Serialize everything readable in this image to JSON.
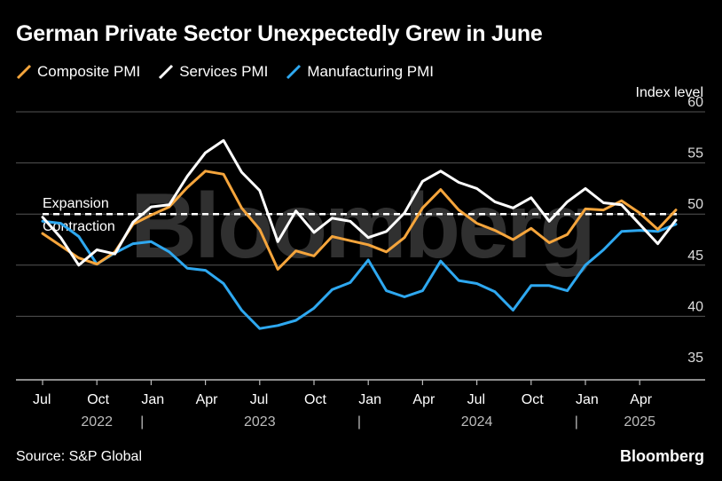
{
  "title": "German Private Sector Unexpectedly Grew in June",
  "source": "Source: S&P Global",
  "brand": "Bloomberg",
  "watermark": "Bloomberg",
  "chart_data": {
    "type": "line",
    "title": "German Private Sector Unexpectedly Grew in June",
    "ylabel": "Index level",
    "ylim": [
      35,
      60
    ],
    "yticks": [
      35,
      40,
      45,
      50,
      55,
      60
    ],
    "reference_line": {
      "value": 50,
      "above_label": "Expansion",
      "below_label": "Contraction"
    },
    "x": [
      "2022-07",
      "2022-08",
      "2022-09",
      "2022-10",
      "2022-11",
      "2022-12",
      "2023-01",
      "2023-02",
      "2023-03",
      "2023-04",
      "2023-05",
      "2023-06",
      "2023-07",
      "2023-08",
      "2023-09",
      "2023-10",
      "2023-11",
      "2023-12",
      "2024-01",
      "2024-02",
      "2024-03",
      "2024-04",
      "2024-05",
      "2024-06",
      "2024-07",
      "2024-08",
      "2024-09",
      "2024-10",
      "2024-11",
      "2024-12",
      "2025-01",
      "2025-02",
      "2025-03",
      "2025-04",
      "2025-05",
      "2025-06"
    ],
    "month_ticks": [
      {
        "index": 0,
        "label": "Jul"
      },
      {
        "index": 3,
        "label": "Oct"
      },
      {
        "index": 6,
        "label": "Jan"
      },
      {
        "index": 9,
        "label": "Apr"
      },
      {
        "index": 12,
        "label": "Jul"
      },
      {
        "index": 15,
        "label": "Oct"
      },
      {
        "index": 18,
        "label": "Jan"
      },
      {
        "index": 21,
        "label": "Apr"
      },
      {
        "index": 24,
        "label": "Jul"
      },
      {
        "index": 27,
        "label": "Oct"
      },
      {
        "index": 30,
        "label": "Jan"
      },
      {
        "index": 33,
        "label": "Apr"
      }
    ],
    "year_labels": [
      {
        "center_index": 3,
        "label": "2022"
      },
      {
        "center_index": 12,
        "label": "2023"
      },
      {
        "center_index": 24,
        "label": "2024"
      },
      {
        "center_index": 33,
        "label": "2025"
      }
    ],
    "year_separators": [
      5.5,
      17.5,
      29.5
    ],
    "series": [
      {
        "name": "Composite PMI",
        "color": "#f5a53c",
        "values": [
          48.1,
          46.9,
          45.7,
          45.1,
          46.3,
          49.0,
          49.9,
          50.7,
          52.6,
          54.2,
          53.9,
          50.6,
          48.5,
          44.6,
          46.4,
          45.9,
          47.8,
          47.4,
          47.0,
          46.3,
          47.7,
          50.6,
          52.4,
          50.4,
          49.1,
          48.4,
          47.5,
          48.6,
          47.2,
          48.0,
          50.5,
          50.4,
          51.3,
          50.1,
          48.5,
          50.4
        ]
      },
      {
        "name": "Services PMI",
        "color": "#ffffff",
        "values": [
          49.7,
          47.7,
          45.0,
          46.5,
          46.1,
          49.2,
          50.7,
          50.9,
          53.7,
          56.0,
          57.2,
          54.1,
          52.3,
          47.3,
          50.3,
          48.2,
          49.6,
          49.3,
          47.7,
          48.3,
          50.1,
          53.2,
          54.2,
          53.1,
          52.5,
          51.2,
          50.6,
          51.6,
          49.3,
          51.2,
          52.5,
          51.1,
          50.9,
          49.0,
          47.1,
          49.4
        ]
      },
      {
        "name": "Manufacturing PMI",
        "color": "#2ea8f0",
        "values": [
          49.3,
          49.1,
          47.8,
          45.1,
          46.2,
          47.1,
          47.3,
          46.3,
          44.7,
          44.5,
          43.2,
          40.6,
          38.8,
          39.1,
          39.6,
          40.8,
          42.6,
          43.3,
          45.5,
          42.5,
          41.9,
          42.5,
          45.4,
          43.5,
          43.2,
          42.4,
          40.6,
          43.0,
          43.0,
          42.5,
          45.0,
          46.5,
          48.3,
          48.4,
          48.3,
          49.0
        ]
      }
    ]
  }
}
